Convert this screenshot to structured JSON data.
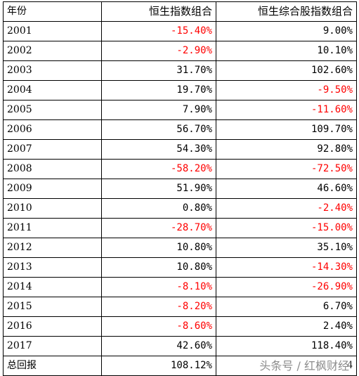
{
  "colors": {
    "negative": "#ff0000",
    "text": "#000000",
    "border": "#000000"
  },
  "header": {
    "year": "年份",
    "hsi": "恒生指数组合",
    "composite": "恒生综合股指数组合"
  },
  "rows": [
    {
      "year": "2001",
      "hsi": "-15.40%",
      "composite": "9.00%"
    },
    {
      "year": "2002",
      "hsi": "-2.90%",
      "composite": "10.10%"
    },
    {
      "year": "2003",
      "hsi": "31.70%",
      "composite": "102.60%"
    },
    {
      "year": "2004",
      "hsi": "19.70%",
      "composite": "-9.50%"
    },
    {
      "year": "2005",
      "hsi": "7.90%",
      "composite": "-11.60%"
    },
    {
      "year": "2006",
      "hsi": "56.70%",
      "composite": "109.70%"
    },
    {
      "year": "2007",
      "hsi": "54.30%",
      "composite": "92.80%"
    },
    {
      "year": "2008",
      "hsi": "-58.20%",
      "composite": "-72.50%"
    },
    {
      "year": "2009",
      "hsi": "51.90%",
      "composite": "46.60%"
    },
    {
      "year": "2010",
      "hsi": "0.80%",
      "composite": "-2.40%"
    },
    {
      "year": "2011",
      "hsi": "-28.70%",
      "composite": "-15.00%"
    },
    {
      "year": "2012",
      "hsi": "10.80%",
      "composite": "35.10%"
    },
    {
      "year": "2013",
      "hsi": "10.80%",
      "composite": "-14.30%"
    },
    {
      "year": "2014",
      "hsi": "-8.10%",
      "composite": "-26.90%"
    },
    {
      "year": "2015",
      "hsi": "-8.20%",
      "composite": "6.70%"
    },
    {
      "year": "2016",
      "hsi": "-8.60%",
      "composite": "2.40%"
    },
    {
      "year": "2017",
      "hsi": "42.60%",
      "composite": "118.40%"
    }
  ],
  "total": {
    "year": "总回报",
    "hsi": "108.12%",
    "composite": "4"
  },
  "watermark": "头条号 / 红枫财经"
}
